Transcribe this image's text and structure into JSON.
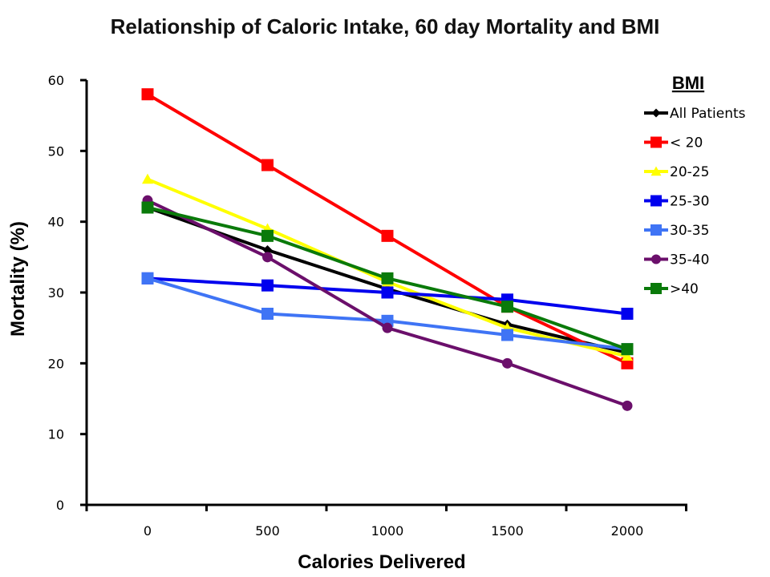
{
  "chart_data": {
    "type": "line",
    "title": "Relationship of Caloric Intake, 60 day Mortality and BMI",
    "xlabel": "Calories Delivered",
    "ylabel": "Mortality (%)",
    "x": [
      0,
      500,
      1000,
      1500,
      2000
    ],
    "x_tick_labels": [
      "0",
      "500",
      "1000",
      "1500",
      "2000"
    ],
    "ylim": [
      0,
      60
    ],
    "y_ticks": [
      0,
      10,
      20,
      30,
      40,
      50,
      60
    ],
    "grid": false,
    "legend": {
      "title": "BMI",
      "position": "top-right"
    },
    "series": [
      {
        "name": "All Patients",
        "color": "#000000",
        "marker": "diamond",
        "values": [
          42,
          36,
          30.5,
          25.5,
          21.5
        ]
      },
      {
        "name": "< 20",
        "color": "#ff0000",
        "marker": "square",
        "values": [
          58,
          48,
          38,
          28,
          20
        ]
      },
      {
        "name": "20-25",
        "color": "#ffff00",
        "marker": "triangle",
        "values": [
          46,
          39,
          31.5,
          25,
          21
        ]
      },
      {
        "name": "25-30",
        "color": "#0000ee",
        "marker": "square",
        "values": [
          32,
          31,
          30,
          29,
          27
        ]
      },
      {
        "name": "30-35",
        "color": "#3f74f5",
        "marker": "square",
        "values": [
          32,
          27,
          26,
          24,
          22
        ]
      },
      {
        "name": "35-40",
        "color": "#6b0f6b",
        "marker": "circle",
        "values": [
          43,
          35,
          25,
          20,
          14
        ]
      },
      {
        "name": ">40",
        "color": "#0a7a0a",
        "marker": "square",
        "values": [
          42,
          38,
          32,
          28,
          22
        ]
      }
    ]
  }
}
